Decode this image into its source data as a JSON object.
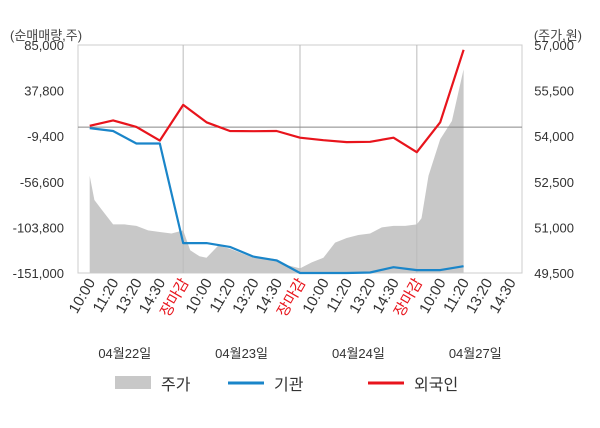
{
  "chart_data": {
    "type": "line",
    "left_axis_unit": "(순매매량,주)",
    "right_axis_unit": "(주가,원)",
    "left_axis": {
      "ticks": [
        "85,000",
        "37,800",
        "-9,400",
        "-56,600",
        "-103,800",
        "-151,000"
      ],
      "min": -151000,
      "max": 85000
    },
    "right_axis": {
      "ticks": [
        "57,000",
        "55,500",
        "54,000",
        "52,500",
        "51,000",
        "49,500"
      ],
      "min": 49500,
      "max": 57000
    },
    "x_time_labels": [
      "10:00",
      "11:20",
      "13:20",
      "14:30",
      "장마감",
      "10:00",
      "11:20",
      "13:20",
      "14:30",
      "장마감",
      "10:00",
      "11:20",
      "13:20",
      "14:30",
      "장마감",
      "10:00",
      "11:20",
      "13:20",
      "14:30"
    ],
    "market_close_label": "장마감",
    "day_labels": [
      "04월22일",
      "04월23일",
      "04월24일",
      "04월27일"
    ],
    "legend": [
      {
        "label": "주가",
        "kind": "area",
        "color": "#c8c8c8"
      },
      {
        "label": "기관",
        "kind": "line",
        "color": "#1a85c9"
      },
      {
        "label": "외국인",
        "kind": "line",
        "color": "#e8141c"
      }
    ],
    "series": [
      {
        "name": "외국인",
        "axis": "left",
        "color": "#e8141c",
        "x": [
          0,
          1,
          2,
          3,
          4,
          5,
          6,
          7,
          8,
          9,
          10,
          11,
          12,
          13,
          14,
          15,
          16
        ],
        "values": [
          1400,
          7000,
          200,
          -14000,
          23000,
          5000,
          -4000,
          -4200,
          -4000,
          -11000,
          -13500,
          -15500,
          -15200,
          -11000,
          -26000,
          5000,
          80000
        ]
      },
      {
        "name": "기관",
        "axis": "left",
        "color": "#1a85c9",
        "x": [
          0,
          1,
          2,
          3,
          4,
          5,
          6,
          7,
          8,
          9,
          10,
          11,
          12,
          13,
          14,
          15,
          16
        ],
        "values": [
          -1000,
          -4000,
          -17000,
          -17000,
          -120000,
          -120000,
          -124000,
          -134000,
          -138000,
          -151000,
          -151000,
          -151000,
          -150500,
          -145000,
          -148000,
          -148000,
          -144000
        ]
      },
      {
        "name": "주가",
        "axis": "right",
        "color": "#c8c8c8",
        "kind": "area",
        "x": [
          0,
          0.2,
          0.5,
          1,
          1.5,
          2,
          2.5,
          3,
          3.5,
          4,
          4.3,
          4.7,
          5,
          5.5,
          6,
          6.5,
          7,
          7.5,
          8,
          8.5,
          9,
          9.5,
          10,
          10.5,
          11,
          11.5,
          12,
          12.5,
          13,
          13.5,
          14,
          14.2,
          14.5,
          15,
          15.5,
          16
        ],
        "values": [
          52700,
          51900,
          51600,
          51100,
          51100,
          51050,
          50900,
          50850,
          50800,
          50900,
          50250,
          50050,
          50000,
          50400,
          50300,
          50150,
          50000,
          50000,
          49950,
          49750,
          49650,
          49850,
          50000,
          50500,
          50650,
          50750,
          50800,
          51000,
          51050,
          51050,
          51100,
          51300,
          52700,
          53900,
          54500,
          56200
        ]
      }
    ]
  }
}
